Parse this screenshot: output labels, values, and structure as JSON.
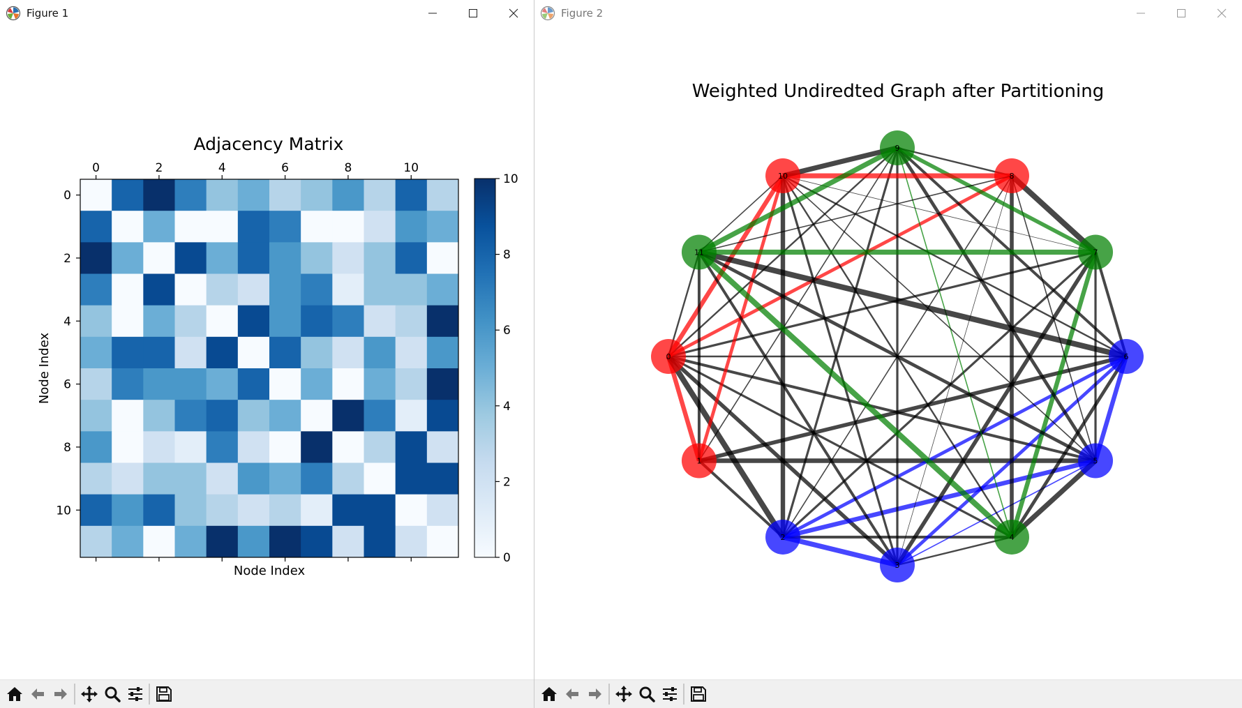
{
  "figure1": {
    "window_title": "Figure 1",
    "chart_data": {
      "type": "heatmap",
      "title": "Adjacency Matrix",
      "xlabel": "Node Index",
      "ylabel": "Node Index",
      "colormap": "Blues",
      "vmin": 0,
      "vmax": 10,
      "x_ticks": [
        0,
        2,
        4,
        6,
        8,
        10
      ],
      "y_ticks": [
        0,
        2,
        4,
        6,
        8,
        10
      ],
      "colorbar_ticks": [
        0,
        2,
        4,
        6,
        8,
        10
      ],
      "matrix": [
        [
          0,
          8,
          10,
          7,
          4,
          5,
          3,
          4,
          6,
          3,
          8,
          3
        ],
        [
          8,
          0,
          5,
          0,
          0,
          8,
          7,
          0,
          0,
          2,
          6,
          5
        ],
        [
          10,
          5,
          0,
          9,
          5,
          8,
          6,
          4,
          2,
          4,
          8,
          0
        ],
        [
          7,
          0,
          9,
          0,
          3,
          2,
          6,
          7,
          1,
          4,
          4,
          5
        ],
        [
          4,
          0,
          5,
          3,
          0,
          9,
          6,
          8,
          7,
          2,
          3,
          10
        ],
        [
          5,
          8,
          8,
          2,
          9,
          0,
          8,
          4,
          2,
          6,
          2,
          6
        ],
        [
          3,
          7,
          6,
          6,
          5,
          8,
          0,
          5,
          0,
          5,
          3,
          10
        ],
        [
          4,
          0,
          4,
          7,
          8,
          4,
          5,
          0,
          10,
          7,
          1,
          9
        ],
        [
          6,
          0,
          2,
          1,
          7,
          2,
          0,
          10,
          0,
          3,
          9,
          2
        ],
        [
          3,
          2,
          4,
          4,
          2,
          6,
          5,
          7,
          3,
          0,
          9,
          9
        ],
        [
          8,
          6,
          8,
          4,
          3,
          2,
          3,
          1,
          9,
          9,
          0,
          2
        ],
        [
          3,
          5,
          0,
          5,
          10,
          6,
          10,
          9,
          2,
          9,
          2,
          0
        ]
      ]
    }
  },
  "figure2": {
    "window_title": "Figure 2",
    "chart_data": {
      "type": "network",
      "title": "Weighted Undiredted Graph after Partitioning",
      "layout": "circular",
      "nodes": [
        {
          "id": "0",
          "group": "red"
        },
        {
          "id": "1",
          "group": "red"
        },
        {
          "id": "2",
          "group": "blue"
        },
        {
          "id": "3",
          "group": "blue"
        },
        {
          "id": "4",
          "group": "green"
        },
        {
          "id": "5",
          "group": "blue"
        },
        {
          "id": "6",
          "group": "blue"
        },
        {
          "id": "7",
          "group": "green"
        },
        {
          "id": "8",
          "group": "red"
        },
        {
          "id": "9",
          "group": "green"
        },
        {
          "id": "10",
          "group": "red"
        },
        {
          "id": "11",
          "group": "green"
        }
      ],
      "group_colors": {
        "red": "#ff0000",
        "blue": "#0000ff",
        "green": "#008000",
        "cross": "#000000"
      },
      "weights_source": "figure1.chart_data.matrix"
    }
  },
  "toolbar": {
    "buttons": [
      {
        "name": "home-button",
        "icon": "home-icon"
      },
      {
        "name": "back-button",
        "icon": "arrow-left-icon"
      },
      {
        "name": "forward-button",
        "icon": "arrow-right-icon"
      },
      {
        "name": "pan-button",
        "icon": "move-icon"
      },
      {
        "name": "zoom-button",
        "icon": "zoom-icon"
      },
      {
        "name": "subplots-button",
        "icon": "sliders-icon"
      },
      {
        "name": "save-button",
        "icon": "floppy-icon"
      }
    ]
  }
}
